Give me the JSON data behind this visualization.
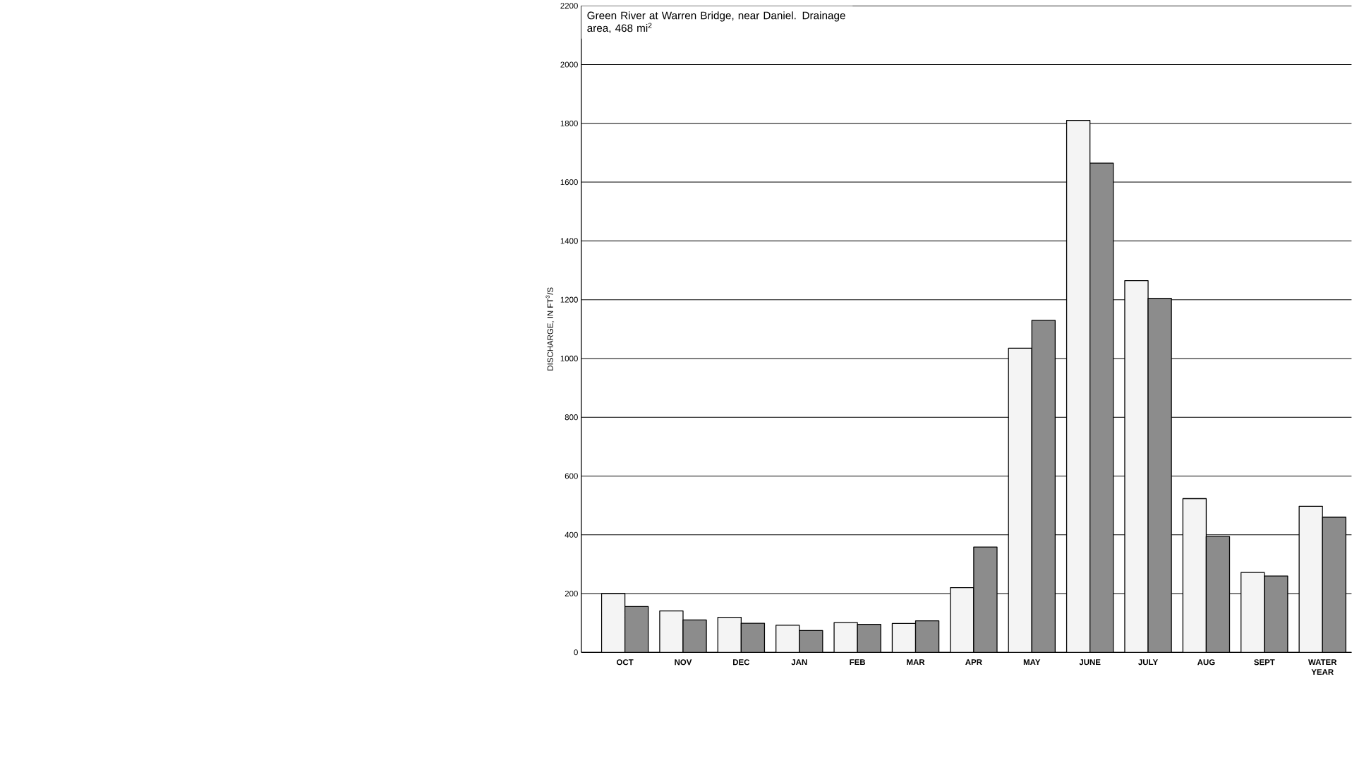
{
  "chart_data": {
    "type": "bar",
    "ylabel": "DISCHARGE, IN FT$^{3}$/S",
    "annotations": [
      "Green River at Warren Bridge, near Daniel.  Drainage area, 468 mi$^{2}$"
    ],
    "categories": [
      "OCT",
      "NOV",
      "DEC",
      "JAN",
      "FEB",
      "MAR",
      "APR",
      "MAY",
      "JUNE",
      "JULY",
      "AUG",
      "SEPT",
      "WATER YEAR"
    ],
    "series": [
      {
        "color": "#f4f4f4",
        "values": [
          200,
          141,
          119,
          92,
          101,
          98,
          220,
          1035,
          1810,
          1265,
          523,
          272,
          497
        ]
      },
      {
        "color": "#8c8c8c",
        "values": [
          156,
          110,
          99,
          74,
          95,
          107,
          358,
          1130,
          1665,
          1205,
          394,
          260,
          460
        ]
      }
    ],
    "ylim": [
      0,
      2200
    ],
    "yticks": [
      0,
      200,
      400,
      600,
      800,
      1000,
      1200,
      1400,
      1600,
      1800,
      2000,
      2200
    ],
    "grid": "y"
  }
}
